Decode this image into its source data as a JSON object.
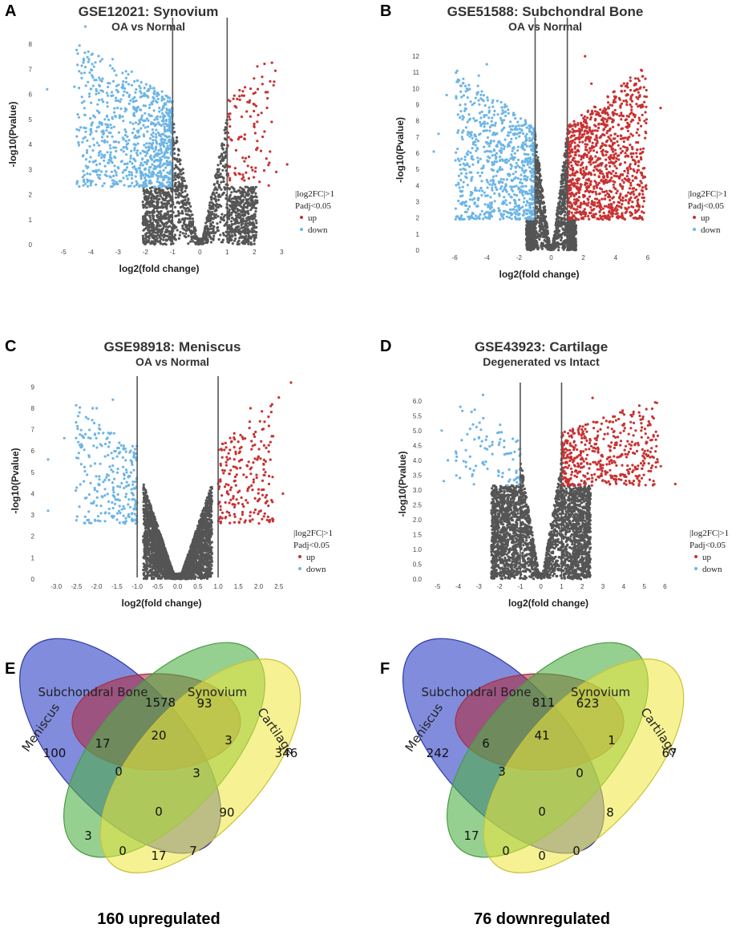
{
  "colors": {
    "up": "#c83232",
    "down": "#6db5e6",
    "ns": "#555555",
    "vline": "#555555"
  },
  "chart_data": [
    {
      "panel": "A",
      "type": "scatter",
      "title": "GSE12021: Synovium",
      "subtitle": "OA vs Normal",
      "xlabel": "log2(fold change)",
      "ylabel": "-log10(Pvalue)",
      "xlim": [
        -5.8,
        3.4
      ],
      "ylim": [
        0,
        8.8
      ],
      "xticks": [
        "-5",
        "-4",
        "-3",
        "-2",
        "-1",
        "0",
        "1",
        "2",
        "3"
      ],
      "yticks": [
        "0",
        "1",
        "2",
        "3",
        "4",
        "5",
        "6",
        "7",
        "8"
      ],
      "thresholds": [
        -1,
        1
      ],
      "sig_cutoff": 2.3,
      "spread": 2.1,
      "counts": {
        "ns": 1500,
        "up": 110,
        "down": 900
      },
      "outliers_down": [
        [
          -5.6,
          6.2
        ],
        [
          -4.6,
          6.3
        ],
        [
          -4.2,
          8.7
        ],
        [
          -4.5,
          2.5
        ],
        [
          -3.8,
          6.2
        ],
        [
          -3.2,
          7.4
        ],
        [
          -2.5,
          6.9
        ]
      ],
      "outliers_up": [
        [
          3.2,
          3.2
        ],
        [
          2.8,
          2.9
        ],
        [
          2.3,
          4.3
        ],
        [
          2.1,
          4.9
        ],
        [
          1.1,
          5.0
        ]
      ],
      "legend": [
        "|log2FC|>1",
        "Padj<0.05",
        "up",
        "down"
      ]
    },
    {
      "panel": "B",
      "type": "scatter",
      "title": "GSE51588: Subchondral Bone",
      "subtitle": "OA vs Normal",
      "xlabel": "log2(fold change)",
      "ylabel": "-log10(Pvalue)",
      "xlim": [
        -7.6,
        7.1
      ],
      "ylim": [
        0,
        12.4
      ],
      "xticks": [
        "-6",
        "-4",
        "-2",
        "0",
        "2",
        "4",
        "6"
      ],
      "yticks": [
        "0",
        "1",
        "2",
        "3",
        "4",
        "5",
        "6",
        "7",
        "8",
        "9",
        "10",
        "11",
        "12"
      ],
      "thresholds": [
        -1,
        1
      ],
      "sig_cutoff": 1.9,
      "spread": 1.55,
      "counts": {
        "ns": 1400,
        "up": 1100,
        "down": 800
      },
      "outliers_down": [
        [
          -7.3,
          6.1
        ],
        [
          -7.0,
          7.2
        ],
        [
          -6.5,
          9.6
        ],
        [
          -5.5,
          8.3
        ],
        [
          -4.9,
          9.0
        ],
        [
          -4.5,
          10.8
        ],
        [
          -4.0,
          11.5
        ]
      ],
      "outliers_up": [
        [
          6.8,
          8.8
        ],
        [
          4.8,
          7.7
        ],
        [
          3.9,
          5.9
        ],
        [
          2.1,
          12.0
        ],
        [
          2.5,
          10.3
        ]
      ],
      "legend": [
        "|log2FC|>1",
        "Padj<0.05",
        "up",
        "down"
      ]
    },
    {
      "panel": "C",
      "type": "scatter",
      "title": "GSE98918: Meniscus",
      "subtitle": "OA vs Normal",
      "xlabel": "log2(fold change)",
      "ylabel": "-log10(Pvalue)",
      "xlim": [
        -3.3,
        2.9
      ],
      "ylim": [
        0,
        9.2
      ],
      "xticks": [
        "-3.0",
        "-2.5",
        "-2.0",
        "-1.5",
        "-1.0",
        "-0.5",
        "0.0",
        "0.5",
        "1.0",
        "1.5",
        "2.0",
        "2.5"
      ],
      "yticks": [
        "0",
        "1",
        "2",
        "3",
        "4",
        "5",
        "6",
        "7",
        "8",
        "9"
      ],
      "thresholds": [
        -1,
        1
      ],
      "sig_cutoff": 2.6,
      "spread": 0.85,
      "counts": {
        "ns": 2600,
        "up": 220,
        "down": 260
      },
      "outliers_down": [
        [
          -3.2,
          5.6
        ],
        [
          -3.2,
          3.2
        ],
        [
          -2.8,
          6.6
        ],
        [
          -2.1,
          8.0
        ],
        [
          -2.0,
          8.0
        ],
        [
          -1.6,
          8.4
        ]
      ],
      "outliers_up": [
        [
          2.8,
          9.2
        ],
        [
          2.5,
          8.5
        ],
        [
          2.3,
          8.1
        ],
        [
          1.8,
          8.0
        ],
        [
          2.0,
          4.2
        ],
        [
          2.6,
          4.0
        ]
      ],
      "legend": [
        "|log2FC|>1",
        "Padj<0.05",
        "up",
        "down"
      ]
    },
    {
      "panel": "D",
      "type": "scatter",
      "title": "GSE43923: Cartilage",
      "subtitle": "Degenerated vs Intact",
      "xlabel": "log2(fold change)",
      "ylabel": "-log10(Pvalue)",
      "xlim": [
        -5.3,
        6.8
      ],
      "ylim": [
        0,
        6.4
      ],
      "xticks": [
        "-5",
        "-4",
        "-3",
        "-2",
        "-1",
        "0",
        "1",
        "2",
        "3",
        "4",
        "5",
        "6"
      ],
      "yticks": [
        "0.0",
        "0.5",
        "1.0",
        "1.5",
        "2.0",
        "2.5",
        "3.0",
        "3.5",
        "4.0",
        "4.5",
        "5.0",
        "5.5",
        "6.0"
      ],
      "thresholds": [
        -1,
        1
      ],
      "sig_cutoff": 3.15,
      "spread": 2.4,
      "counts": {
        "ns": 2800,
        "up": 480,
        "down": 90
      },
      "outliers_down": [
        [
          -4.8,
          5.0
        ],
        [
          -4.5,
          4.0
        ],
        [
          -3.9,
          5.8
        ],
        [
          -3.2,
          5.7
        ],
        [
          -2.8,
          6.2
        ],
        [
          -4.7,
          3.3
        ]
      ],
      "outliers_up": [
        [
          6.5,
          3.2
        ],
        [
          5.8,
          3.8
        ],
        [
          5.0,
          3.9
        ],
        [
          2.5,
          6.1
        ],
        [
          4.2,
          4.2
        ]
      ],
      "legend": [
        "|log2FC|>1",
        "Padj<0.05",
        "up",
        "down"
      ]
    },
    {
      "panel": "E",
      "type": "venn",
      "sets": [
        "Subchondral Bone",
        "Synovium",
        "Meniscus",
        "Cartilage"
      ],
      "regions": {
        "bone_only": "1578",
        "syn_only": "93",
        "men_only": "100",
        "cart_only": "346",
        "men_bone": "17",
        "bone_syn": "20",
        "syn_cart": "3",
        "men_cart": "17",
        "men_bone_syn": "0",
        "bone_syn_cart": "3",
        "men_syn": "3",
        "bone_cart": "90",
        "all": "0",
        "men_syn_cart": "0",
        "men_bone_cart": "7"
      },
      "caption": "160 upregulated"
    },
    {
      "panel": "F",
      "type": "venn",
      "sets": [
        "Subchondral Bone",
        "Synovium",
        "Meniscus",
        "Cartilage"
      ],
      "regions": {
        "bone_only": "811",
        "syn_only": "623",
        "men_only": "242",
        "cart_only": "67",
        "men_bone": "6",
        "bone_syn": "41",
        "syn_cart": "1",
        "men_cart": "0",
        "men_bone_syn": "3",
        "bone_syn_cart": "0",
        "men_syn": "17",
        "bone_cart": "8",
        "all": "0",
        "men_syn_cart": "0",
        "men_bone_cart": "0"
      },
      "caption": "76 downregulated"
    }
  ]
}
